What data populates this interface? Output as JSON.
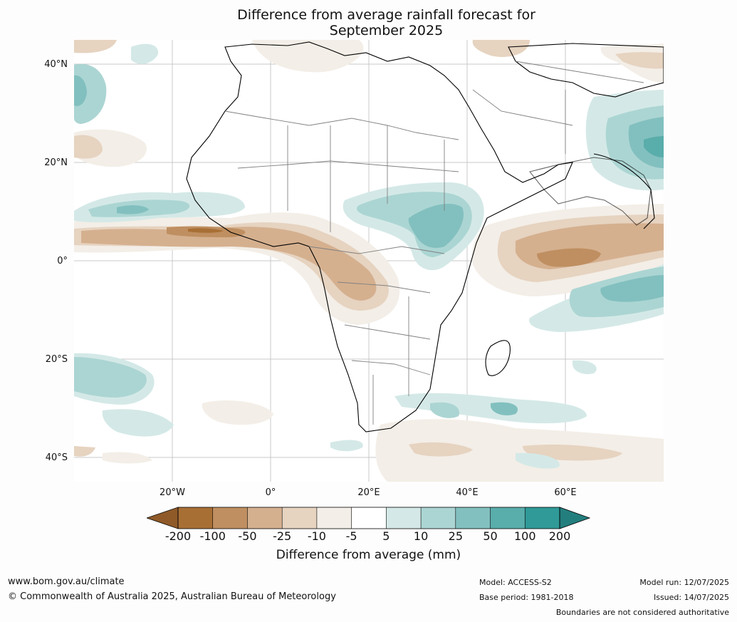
{
  "title": "Difference from average rainfall forecast for September 2025",
  "title_line1": "Difference from average rainfall forecast for",
  "title_line2": "September 2025",
  "axes": {
    "lat_labels": [
      "40°N",
      "20°N",
      "0°",
      "20°S",
      "40°S"
    ],
    "lon_labels": [
      "20°W",
      "0°",
      "20°E",
      "40°E",
      "60°E"
    ]
  },
  "legend": {
    "title": "Difference from average (mm)",
    "ticks": [
      "-200",
      "-100",
      "-50",
      "-25",
      "-10",
      "-5",
      "5",
      "10",
      "25",
      "50",
      "100",
      "200"
    ],
    "colors": [
      "#a86f35",
      "#bf8f61",
      "#d5b08f",
      "#e6d3c0",
      "#f3eee7",
      "#ffffff",
      "#d4e9e7",
      "#abd5d3",
      "#82c0bf",
      "#59adab",
      "#309a98"
    ],
    "under_color": "#8f5a28",
    "over_color": "#237f7e"
  },
  "footer": {
    "url": "www.bom.gov.au/climate",
    "copyright": "© Commonwealth of Australia 2025, Australian Bureau of Meteorology",
    "model": "Model: ACCESS-S2",
    "base_period": "Base period: 1981-2018",
    "model_run": "Model run: 12/07/2025",
    "issued": "Issued: 14/07/2025",
    "boundaries": "Boundaries are not considered authoritative"
  }
}
